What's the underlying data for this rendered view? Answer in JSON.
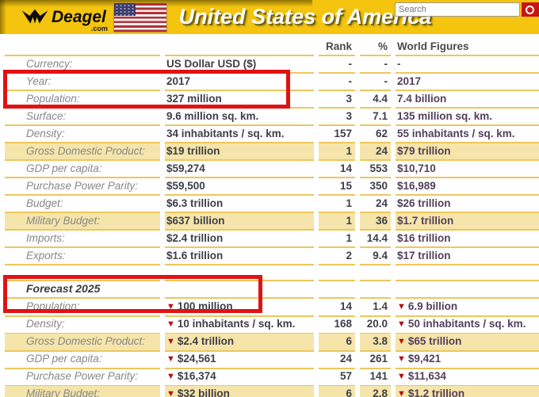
{
  "header": {
    "logo_brand": "Deagel",
    "logo_tld": ".com",
    "title": "United States of America",
    "search_placeholder": "Search"
  },
  "columns": {
    "rank": "Rank",
    "pct": "%",
    "world": "World Figures"
  },
  "forecast_title": "Forecast 2025",
  "icons": {
    "down_arrow": "▼",
    "deagel_logo": "trident-eagle",
    "search_go": "magnifier"
  },
  "colors": {
    "accent": "#f4c40e",
    "goldline": "#eec65c",
    "cream": "#f5e5aa",
    "boxred": "#e01313",
    "arrow_red": "#b30f0f",
    "btn_red": "#cc1212"
  },
  "rows_current": [
    {
      "label": "Currency:",
      "value": "US Dollar USD ($)",
      "rank": "-",
      "pct": "-",
      "world": "-",
      "highlight": false
    },
    {
      "label": "Year:",
      "value": "2017",
      "rank": "-",
      "pct": "-",
      "world": "2017",
      "highlight": false
    },
    {
      "label": "Population:",
      "value": "327 million",
      "rank": "3",
      "pct": "4.4",
      "world": "7.4 billion",
      "highlight": false
    },
    {
      "label": "Surface:",
      "value": "9.6 million sq. km.",
      "rank": "3",
      "pct": "7.1",
      "world": "135 million sq. km.",
      "highlight": false
    },
    {
      "label": "Density:",
      "value": "34 inhabitants / sq. km.",
      "rank": "157",
      "pct": "62",
      "world": "55 inhabitants / sq. km.",
      "highlight": false
    },
    {
      "label": "Gross Domestic Product:",
      "value": "$19 trillion",
      "rank": "1",
      "pct": "24",
      "world": "$79 trillion",
      "highlight": true
    },
    {
      "label": "GDP per capita:",
      "value": "$59,274",
      "rank": "14",
      "pct": "553",
      "world": "$10,710",
      "highlight": false
    },
    {
      "label": "Purchase Power Parity:",
      "value": "$59,500",
      "rank": "15",
      "pct": "350",
      "world": "$16,989",
      "highlight": false
    },
    {
      "label": "Budget:",
      "value": "$6.3 trillion",
      "rank": "1",
      "pct": "24",
      "world": "$26 trillion",
      "highlight": false
    },
    {
      "label": "Military Budget:",
      "value": "$637 billion",
      "rank": "1",
      "pct": "36",
      "world": "$1.7 trillion",
      "highlight": true
    },
    {
      "label": "Imports:",
      "value": "$2.4 trillion",
      "rank": "1",
      "pct": "14.4",
      "world": "$16 trillion",
      "highlight": false
    },
    {
      "label": "Exports:",
      "value": "$1.6 trillion",
      "rank": "2",
      "pct": "9.4",
      "world": "$17 trillion",
      "highlight": false
    }
  ],
  "rows_forecast": [
    {
      "label": "Population:",
      "value": "100 million",
      "rank": "14",
      "pct": "1.4",
      "world": "6.9 billion",
      "highlight": false,
      "trend": "down"
    },
    {
      "label": "Density:",
      "value": "10 inhabitants / sq. km.",
      "rank": "168",
      "pct": "20.0",
      "world": "50 inhabitants / sq. km.",
      "highlight": false,
      "trend": "down"
    },
    {
      "label": "Gross Domestic Product:",
      "value": "$2.4 trillion",
      "rank": "6",
      "pct": "3.8",
      "world": "$65 trillion",
      "highlight": true,
      "trend": "down"
    },
    {
      "label": "GDP per capita:",
      "value": "$24,561",
      "rank": "24",
      "pct": "261",
      "world": "$9,421",
      "highlight": false,
      "trend": "down"
    },
    {
      "label": "Purchase Power Parity:",
      "value": "$16,374",
      "rank": "57",
      "pct": "141",
      "world": "$11,634",
      "highlight": false,
      "trend": "down"
    },
    {
      "label": "Military Budget:",
      "value": "$32 billion",
      "rank": "6",
      "pct": "2.8",
      "world": "$1.2 trillion",
      "highlight": true,
      "trend": "down"
    }
  ]
}
